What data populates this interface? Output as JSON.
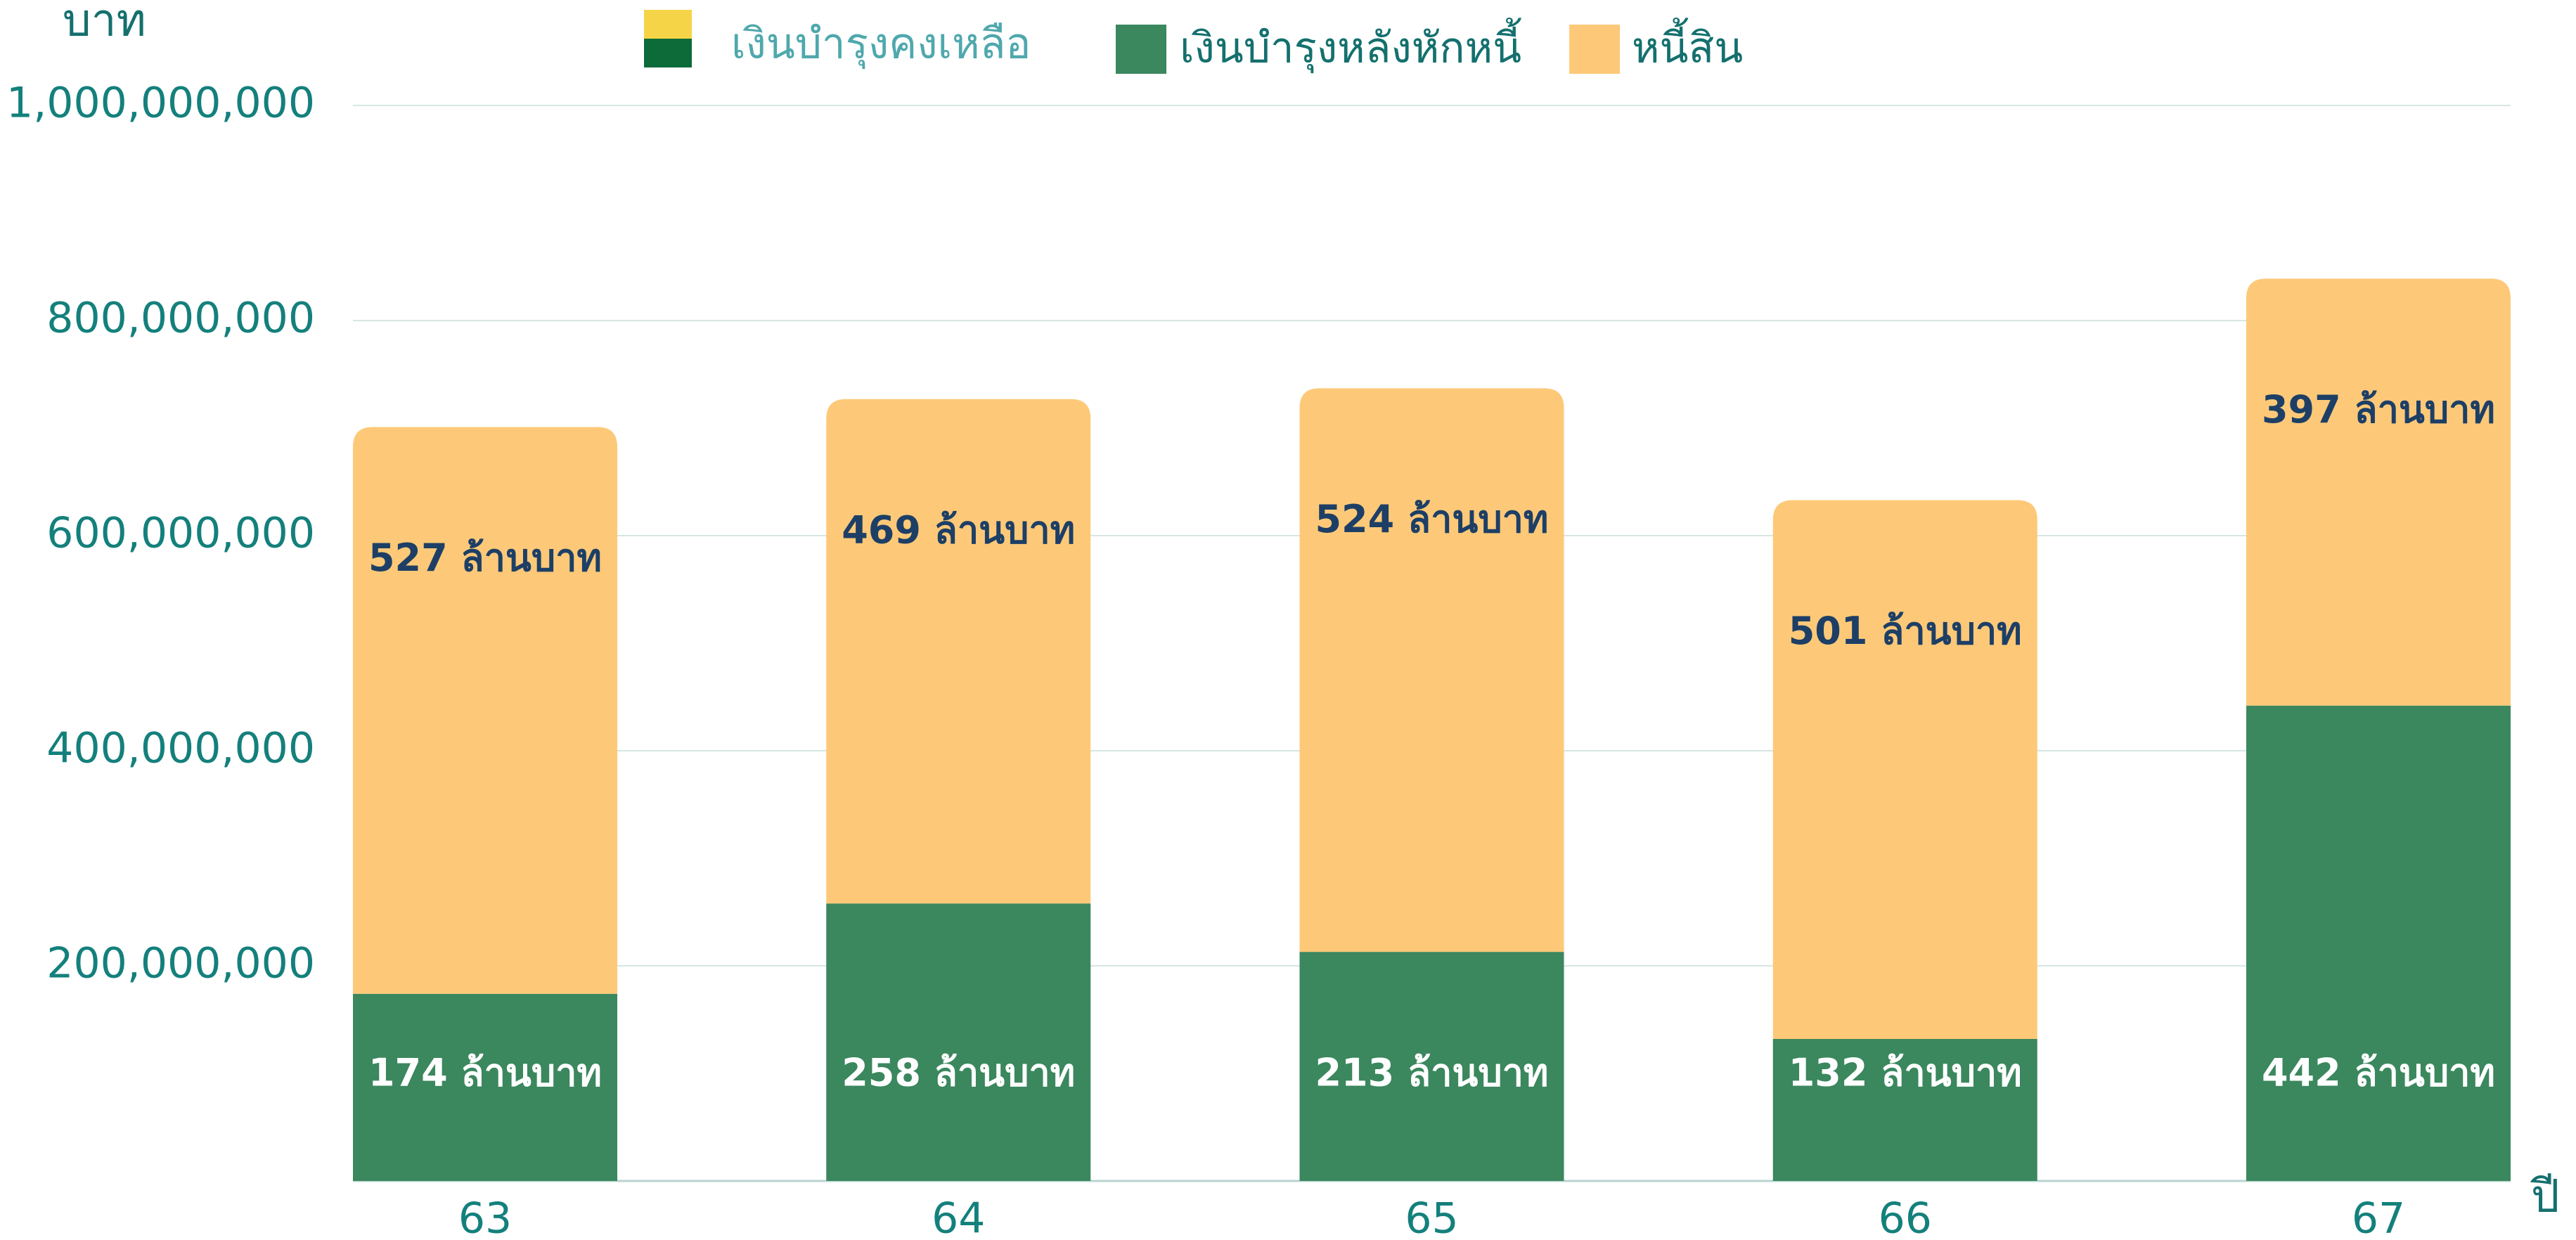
{
  "chart_data": {
    "type": "stacked_bar",
    "y_label": "บาท",
    "x_label": "ปี",
    "categories": [
      "63",
      "64",
      "65",
      "66",
      "67"
    ],
    "series": [
      {
        "name": "เงินบำรุงหลังหักหนี้",
        "color": "#3b875e",
        "label_color": "#ffffff",
        "values": [
          174000000,
          258000000,
          213000000,
          132000000,
          442000000
        ],
        "value_labels": [
          "174 ล้านบาท",
          "258 ล้านบาท",
          "213 ล้านบาท",
          "132 ล้านบาท",
          "442 ล้านบาท"
        ]
      },
      {
        "name": "หนี้สิน",
        "color": "#fdc978",
        "label_color": "#1d3f66",
        "values": [
          527000000,
          469000000,
          524000000,
          501000000,
          397000000
        ],
        "value_labels": [
          "527 ล้านบาท",
          "469 ล้านบาท",
          "524 ล้านบาท",
          "501 ล้านบาท",
          "397 ล้านบาท"
        ]
      }
    ],
    "legend_extra": {
      "name": "เงินบำรุงคงเหลือ",
      "colors": [
        "#f5d547",
        "#0d6b3a"
      ]
    },
    "ylim": [
      0,
      1000000000
    ],
    "yticks": [
      {
        "value": 200000000,
        "label": "200,000,000"
      },
      {
        "value": 400000000,
        "label": "400,000,000"
      },
      {
        "value": 600000000,
        "label": "600,000,000"
      },
      {
        "value": 800000000,
        "label": "800,000,000"
      },
      {
        "value": 1000000000,
        "label": "1,000,000,000"
      }
    ],
    "grid": true
  }
}
